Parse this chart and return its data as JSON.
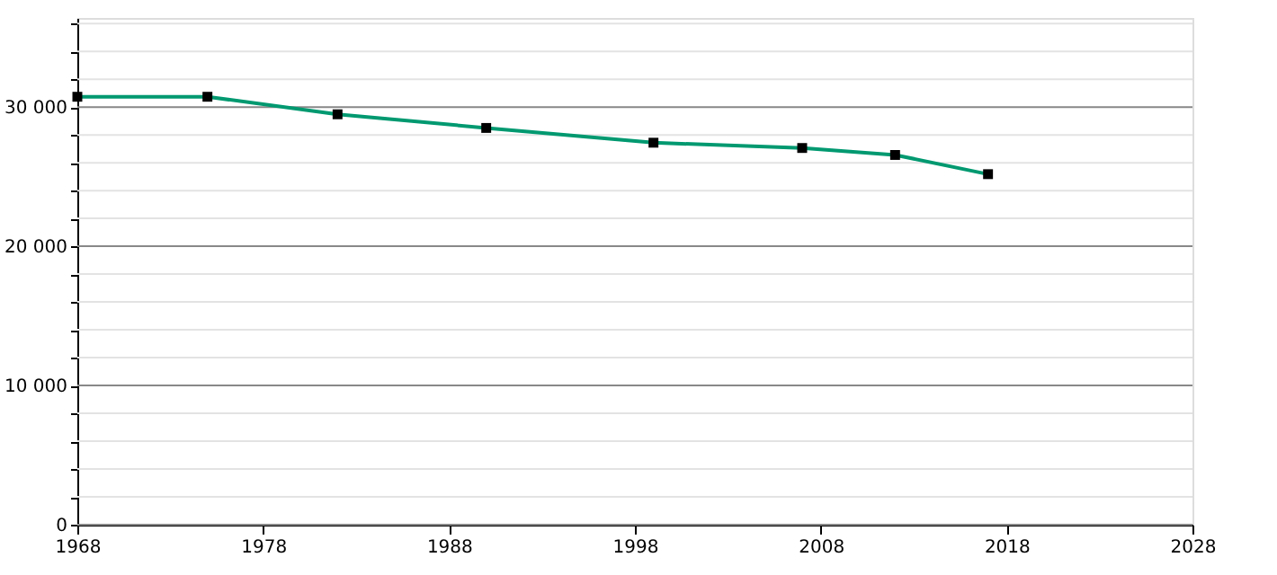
{
  "chart_data": {
    "type": "line",
    "x": [
      1968,
      1975,
      1982,
      1990,
      1999,
      2007,
      2012,
      2017
    ],
    "series": [
      {
        "color": "#009970",
        "values": [
          30740,
          30740,
          29480,
          28500,
          27440,
          27060,
          26560,
          25180
        ]
      }
    ],
    "xlim": [
      1968,
      2028
    ],
    "xticks": [
      1968,
      1978,
      1988,
      1998,
      2008,
      2018,
      2028
    ],
    "ylim": [
      0,
      36400
    ],
    "yticks": [
      {
        "value": 0,
        "label": "0"
      },
      {
        "value": 2000,
        "label": null
      },
      {
        "value": 4000,
        "label": null
      },
      {
        "value": 6000,
        "label": null
      },
      {
        "value": 8000,
        "label": null
      },
      {
        "value": 10000,
        "label": "10 000"
      },
      {
        "value": 12000,
        "label": null
      },
      {
        "value": 14000,
        "label": null
      },
      {
        "value": 16000,
        "label": null
      },
      {
        "value": 18000,
        "label": null
      },
      {
        "value": 20000,
        "label": "20 000"
      },
      {
        "value": 22000,
        "label": null
      },
      {
        "value": 24000,
        "label": null
      },
      {
        "value": 26000,
        "label": null
      },
      {
        "value": 28000,
        "label": null
      },
      {
        "value": 30000,
        "label": "30 000"
      },
      {
        "value": 32000,
        "label": null
      },
      {
        "value": 34000,
        "label": null
      },
      {
        "value": 36000,
        "label": null
      }
    ],
    "grid": "y",
    "marker": "square",
    "line_style": "solid"
  }
}
